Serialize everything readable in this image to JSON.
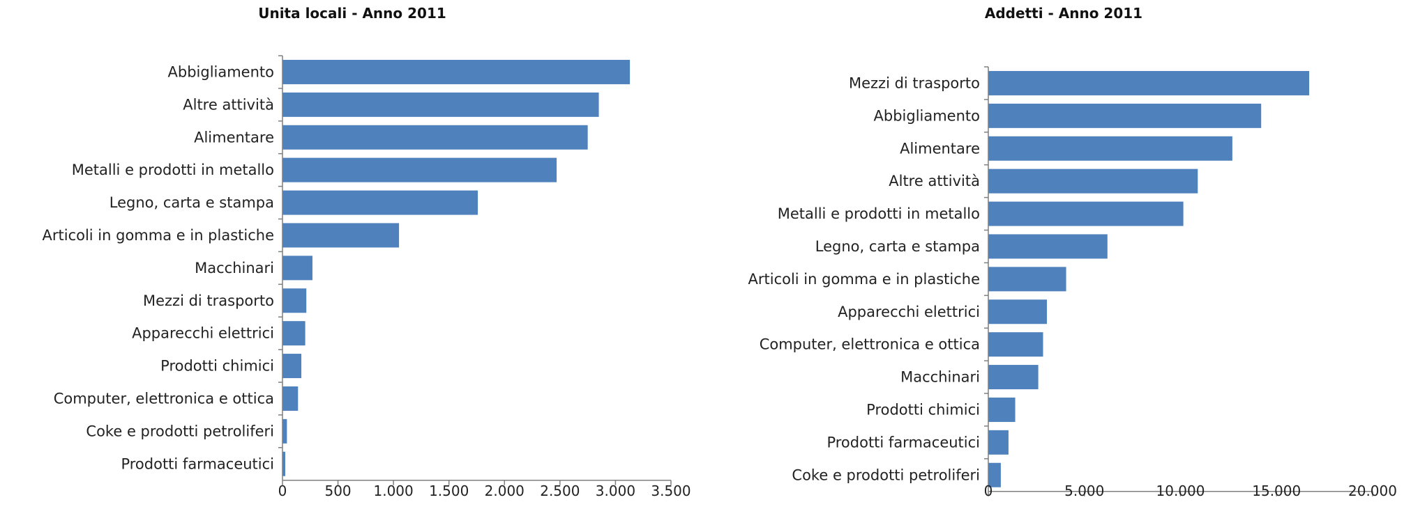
{
  "chart_data": [
    {
      "type": "bar",
      "orientation": "horizontal",
      "title": "Unita locali - Anno 2011",
      "categories": [
        "Abbigliamento",
        "Altre attività",
        "Alimentare",
        "Metalli e prodotti in metallo",
        "Legno, carta e stampa",
        "Articoli in gomma e in plastiche",
        "Macchinari",
        "Mezzi di trasporto",
        "Apparecchi elettrici",
        "Prodotti chimici",
        "Computer, elettronica e ottica",
        "Coke e prodotti petroliferi",
        "Prodotti farmaceutici"
      ],
      "values": [
        3130,
        2850,
        2750,
        2470,
        1760,
        1050,
        270,
        215,
        205,
        170,
        140,
        40,
        25
      ],
      "xlim": [
        0,
        3500
      ],
      "ticks": [
        0,
        500,
        1000,
        1500,
        2000,
        2500,
        3000,
        3500
      ],
      "tick_labels": [
        "0",
        "500",
        "1.000",
        "1.500",
        "2.000",
        "2.500",
        "3.000",
        "3.500"
      ],
      "color": "#4f81bd",
      "grid": false,
      "legend": "none"
    },
    {
      "type": "bar",
      "orientation": "horizontal",
      "title": "Addetti - Anno 2011",
      "categories": [
        "Mezzi di trasporto",
        "Abbigliamento",
        "Alimentare",
        "Altre attività",
        "Metalli e prodotti in metallo",
        "Legno, carta e stampa",
        "Articoli in gomma e in plastiche",
        "Apparecchi elettrici",
        "Computer, elettronica e ottica",
        "Macchinari",
        "Prodotti chimici",
        "Prodotti farmaceutici",
        "Coke e prodotti petroliferi"
      ],
      "values": [
        16700,
        14200,
        12700,
        10900,
        10150,
        6200,
        4050,
        3050,
        2850,
        2600,
        1400,
        1050,
        650
      ],
      "xlim": [
        0,
        20000
      ],
      "ticks": [
        0,
        5000,
        10000,
        15000,
        20000
      ],
      "tick_labels": [
        "0",
        "5.000",
        "10.000",
        "15.000",
        "20.000"
      ],
      "color": "#4f81bd",
      "grid": false,
      "legend": "none"
    }
  ]
}
